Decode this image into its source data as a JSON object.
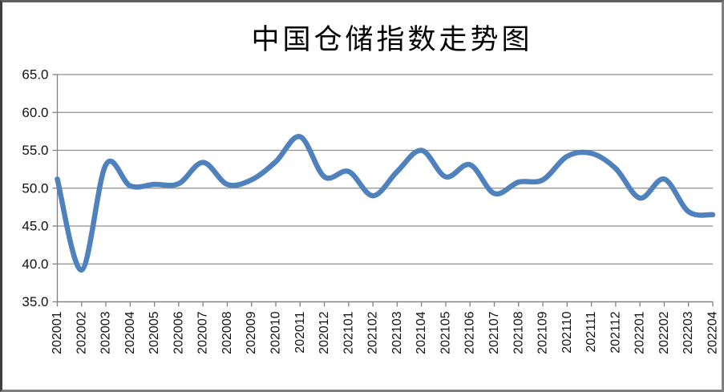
{
  "chart_data": {
    "type": "line",
    "title": "中国仓储指数走势图",
    "categories": [
      "202001",
      "202002",
      "202003",
      "202004",
      "202005",
      "202006",
      "202007",
      "202008",
      "202009",
      "202010",
      "202011",
      "202012",
      "202101",
      "202102",
      "202103",
      "202104",
      "202105",
      "202106",
      "202107",
      "202108",
      "202109",
      "202110",
      "202111",
      "202112",
      "202201",
      "202202",
      "202203",
      "202204"
    ],
    "series": [
      {
        "name": "中国仓储指数",
        "values": [
          51.2,
          39.2,
          53.1,
          50.3,
          50.5,
          50.6,
          53.4,
          50.5,
          51.1,
          53.5,
          56.8,
          51.5,
          52.2,
          49.0,
          52.2,
          55.0,
          51.5,
          53.1,
          49.3,
          50.8,
          51.1,
          54.2,
          54.6,
          52.6,
          48.7,
          51.2,
          46.9,
          46.5
        ]
      }
    ],
    "xlabel": "",
    "ylabel": "",
    "ylim": [
      35.0,
      65.0
    ],
    "y_tick_step": 5.0,
    "y_tick_labels": [
      "65.0",
      "60.0",
      "55.0",
      "50.0",
      "45.0",
      "40.0",
      "35.0"
    ],
    "grid": "horizontal-only",
    "legend": "none",
    "smoothed_line": true,
    "colors": {
      "line": "#4F81BD",
      "grid": "#8f8f8f",
      "axis": "#808080",
      "text": "#111111",
      "background": "#ffffff"
    }
  }
}
